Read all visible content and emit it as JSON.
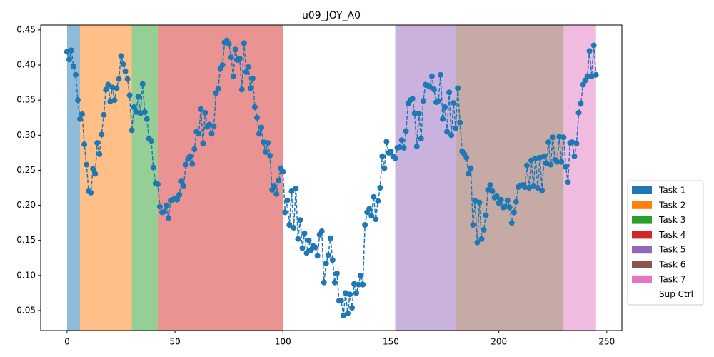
{
  "chart_data": {
    "type": "line",
    "title": "u09_JOY_A0",
    "color": "#1f77b4",
    "linestyle": "dashed",
    "marker": "circle",
    "xlim": [
      -12.2,
      257
    ],
    "ylim": [
      0.0215,
      0.457
    ],
    "xticks": [
      0,
      50,
      100,
      150,
      200,
      250
    ],
    "yticks": [
      0.05,
      {
        "value": 0.1,
        "label": "0.10"
      },
      0.15,
      {
        "value": 0.2,
        "label": "0.20"
      },
      0.25,
      {
        "value": 0.3,
        "label": "0.30"
      },
      0.35,
      {
        "value": 0.4,
        "label": "0.40"
      },
      0.45
    ],
    "legend": "right",
    "spans": [
      {
        "name": "Task 1",
        "start": 0,
        "end": 6,
        "color": "#1f77b4"
      },
      {
        "name": "Task 2",
        "start": 6,
        "end": 30,
        "color": "#ff7f0e"
      },
      {
        "name": "Task 3",
        "start": 30,
        "end": 42,
        "color": "#2ca02c"
      },
      {
        "name": "Task 4",
        "start": 42,
        "end": 100,
        "color": "#d62728"
      },
      {
        "name": "Task 5",
        "start": 152,
        "end": 180,
        "color": "#9467bd"
      },
      {
        "name": "Task 6",
        "start": 180,
        "end": 230,
        "color": "#8c564b"
      },
      {
        "name": "Task 7",
        "start": 230,
        "end": 245,
        "color": "#e377c2"
      },
      {
        "name": "Sup Ctrl",
        "start": 100,
        "end": 152,
        "color": "#ffffff"
      }
    ],
    "x": [
      0,
      1,
      2,
      3,
      4,
      5,
      6,
      7,
      8,
      9,
      10,
      11,
      12,
      13,
      14,
      15,
      16,
      17,
      18,
      19,
      20,
      21,
      22,
      23,
      24,
      25,
      26,
      27,
      28,
      29,
      30,
      31,
      32,
      33,
      34,
      35,
      36,
      37,
      38,
      39,
      40,
      41,
      42,
      43,
      44,
      45,
      46,
      47,
      48,
      49,
      50,
      51,
      52,
      53,
      54,
      55,
      56,
      57,
      58,
      59,
      60,
      61,
      62,
      63,
      64,
      65,
      66,
      67,
      68,
      69,
      70,
      71,
      72,
      73,
      74,
      75,
      76,
      77,
      78,
      79,
      80,
      81,
      82,
      83,
      84,
      85,
      86,
      87,
      88,
      89,
      90,
      91,
      92,
      93,
      94,
      95,
      96,
      97,
      98,
      99,
      100,
      101,
      102,
      103,
      104,
      105,
      106,
      107,
      108,
      109,
      110,
      111,
      112,
      113,
      114,
      115,
      116,
      117,
      118,
      119,
      120,
      121,
      122,
      123,
      124,
      125,
      126,
      127,
      128,
      129,
      130,
      131,
      132,
      133,
      134,
      135,
      136,
      137,
      138,
      139,
      140,
      141,
      142,
      143,
      144,
      145,
      146,
      147,
      148,
      149,
      150,
      151,
      152,
      153,
      154,
      155,
      156,
      157,
      158,
      159,
      160,
      161,
      162,
      163,
      164,
      165,
      166,
      167,
      168,
      169,
      170,
      171,
      172,
      173,
      174,
      175,
      176,
      177,
      178,
      179,
      180,
      181,
      182,
      183,
      184,
      185,
      186,
      187,
      188,
      189,
      190,
      191,
      192,
      193,
      194,
      195,
      196,
      197,
      198,
      199,
      200,
      201,
      202,
      203,
      204,
      205,
      206,
      207,
      208,
      209,
      210,
      211,
      212,
      213,
      214,
      215,
      216,
      217,
      218,
      219,
      220,
      221,
      222,
      223,
      224,
      225,
      226,
      227,
      228,
      229,
      230,
      231,
      232,
      233,
      234,
      235,
      236,
      237,
      238,
      239,
      240,
      241,
      242,
      243,
      244,
      245
    ],
    "values": [
      0.419,
      0.408,
      0.421,
      0.398,
      0.386,
      0.35,
      0.323,
      0.33,
      0.287,
      0.258,
      0.22,
      0.218,
      0.252,
      0.245,
      0.289,
      0.273,
      0.301,
      0.329,
      0.365,
      0.372,
      0.348,
      0.368,
      0.35,
      0.367,
      0.38,
      0.413,
      0.401,
      0.391,
      0.38,
      0.357,
      0.307,
      0.34,
      0.333,
      0.355,
      0.331,
      0.373,
      0.333,
      0.323,
      0.295,
      0.292,
      0.254,
      0.231,
      0.23,
      0.198,
      0.19,
      0.191,
      0.2,
      0.182,
      0.207,
      0.208,
      0.21,
      0.208,
      0.215,
      0.234,
      0.227,
      0.258,
      0.266,
      0.27,
      0.259,
      0.28,
      0.305,
      0.302,
      0.337,
      0.288,
      0.332,
      0.312,
      0.315,
      0.302,
      0.313,
      0.36,
      0.366,
      0.395,
      0.4,
      0.432,
      0.435,
      0.43,
      0.411,
      0.384,
      0.422,
      0.407,
      0.409,
      0.365,
      0.431,
      0.39,
      0.397,
      0.367,
      0.381,
      0.34,
      0.325,
      0.302,
      0.311,
      0.29,
      0.276,
      0.289,
      0.271,
      0.222,
      0.227,
      0.216,
      0.235,
      0.253,
      0.248,
      0.19,
      0.207,
      0.172,
      0.22,
      0.168,
      0.224,
      0.152,
      0.179,
      0.139,
      0.16,
      0.132,
      0.15,
      0.136,
      0.142,
      0.14,
      0.128,
      0.158,
      0.163,
      0.09,
      0.117,
      0.129,
      0.153,
      0.122,
      0.09,
      0.103,
      0.064,
      0.064,
      0.043,
      0.075,
      0.046,
      0.073,
      0.054,
      0.088,
      0.075,
      0.087,
      0.1,
      0.087,
      0.172,
      0.19,
      0.195,
      0.185,
      0.212,
      0.18,
      0.206,
      0.225,
      0.27,
      0.253,
      0.291,
      0.275,
      0.277,
      0.27,
      0.267,
      0.282,
      0.283,
      0.293,
      0.282,
      0.306,
      0.345,
      0.35,
      0.352,
      0.331,
      0.284,
      0.331,
      0.295,
      0.349,
      0.372,
      0.371,
      0.369,
      0.384,
      0.365,
      0.347,
      0.349,
      0.386,
      0.323,
      0.34,
      0.305,
      0.361,
      0.3,
      0.346,
      0.31,
      0.367,
      0.318,
      0.277,
      0.273,
      0.268,
      0.245,
      0.253,
      0.172,
      0.206,
      0.147,
      0.204,
      0.152,
      0.165,
      0.186,
      0.222,
      0.229,
      0.22,
      0.211,
      0.213,
      0.203,
      0.208,
      0.197,
      0.198,
      0.207,
      0.197,
      0.175,
      0.19,
      0.205,
      0.226,
      0.228,
      0.229,
      0.226,
      0.257,
      0.225,
      0.264,
      0.227,
      0.267,
      0.225,
      0.268,
      0.221,
      0.27,
      0.26,
      0.29,
      0.258,
      0.297,
      0.265,
      0.262,
      0.298,
      0.262,
      0.297,
      0.255,
      0.233,
      0.289,
      0.29,
      0.27,
      0.288,
      0.332,
      0.345,
      0.372,
      0.378,
      0.384,
      0.42,
      0.384,
      0.428,
      0.386
    ]
  }
}
